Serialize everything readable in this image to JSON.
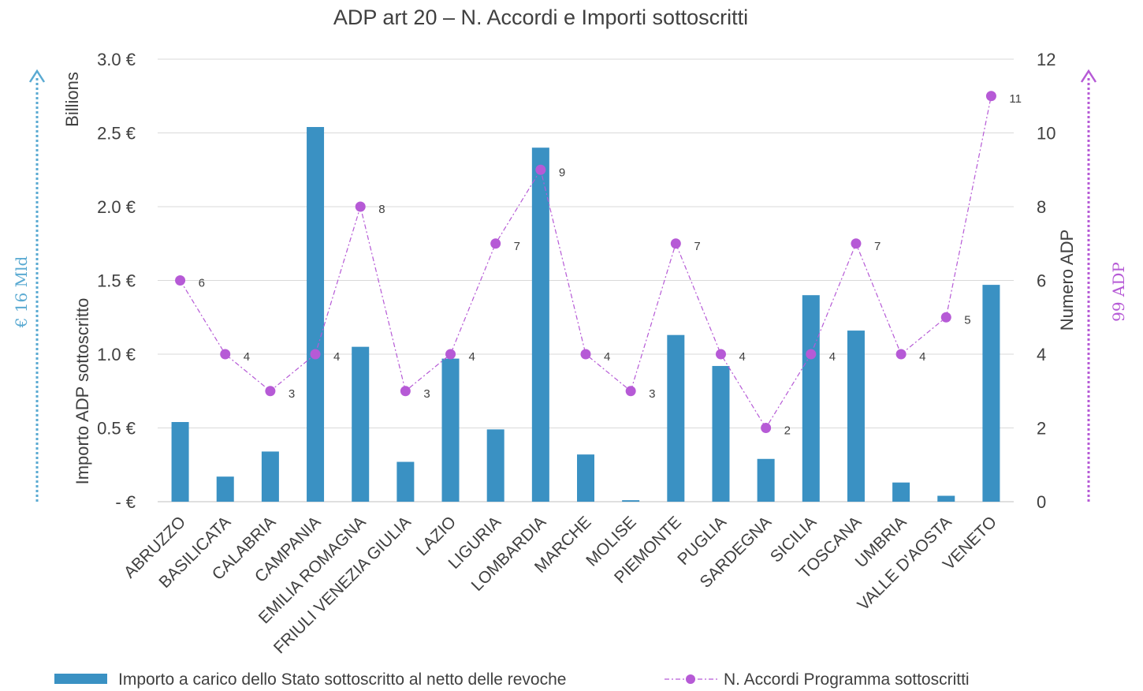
{
  "chart_data": {
    "type": "bar",
    "title": "ADP art 20 – N. Accordi e Importi sottoscritti",
    "categories": [
      "ABRUZZO",
      "BASILICATA",
      "CALABRIA",
      "CAMPANIA",
      "EMILIA ROMAGNA",
      "FRIULI VENEZIA GIULIA",
      "LAZIO",
      "LIGURIA",
      "LOMBARDIA",
      "MARCHE",
      "MOLISE",
      "PIEMONTE",
      "PUGLIA",
      "SARDEGNA",
      "SICILIA",
      "TOSCANA",
      "UMBRIA",
      "VALLE D'AOSTA",
      "VENETO"
    ],
    "series": [
      {
        "name": "Importo a carico dello Stato sottoscritto al netto delle revoche",
        "type": "bar",
        "axis": "left",
        "color": "#3a91c3",
        "values": [
          0.54,
          0.17,
          0.34,
          2.54,
          1.05,
          0.27,
          0.97,
          0.49,
          2.4,
          0.32,
          0.01,
          1.13,
          0.92,
          0.29,
          1.4,
          1.16,
          0.13,
          0.04,
          1.47
        ]
      },
      {
        "name": "N. Accordi Programma sottoscritti",
        "type": "line",
        "axis": "right",
        "color": "#b65ad6",
        "values": [
          6,
          4,
          3,
          4,
          8,
          3,
          4,
          7,
          9,
          4,
          3,
          7,
          4,
          2,
          4,
          7,
          4,
          5,
          11
        ]
      }
    ],
    "left_axis": {
      "label": "Importo ADP sottoscritto",
      "units_label": "Billions",
      "range": [
        0,
        3
      ],
      "ticks": [
        0,
        0.5,
        1,
        1.5,
        2,
        2.5,
        3
      ],
      "tick_labels": [
        "- €",
        "0.5 €",
        "1.0 €",
        "1.5 €",
        "2.0 €",
        "2.5 €",
        "3.0 €"
      ]
    },
    "right_axis": {
      "label": "Numero ADP",
      "range": [
        0,
        12
      ],
      "ticks": [
        0,
        2,
        4,
        6,
        8,
        10,
        12
      ],
      "tick_labels": [
        "0",
        "2",
        "4",
        "6",
        "8",
        "10",
        "12"
      ]
    },
    "grid": true,
    "legend_position": "bottom",
    "side_notes": {
      "left": "€ 16 Mld",
      "left_color": "#5aaad2",
      "right": "99 ADP",
      "right_color": "#b65ad6"
    }
  }
}
